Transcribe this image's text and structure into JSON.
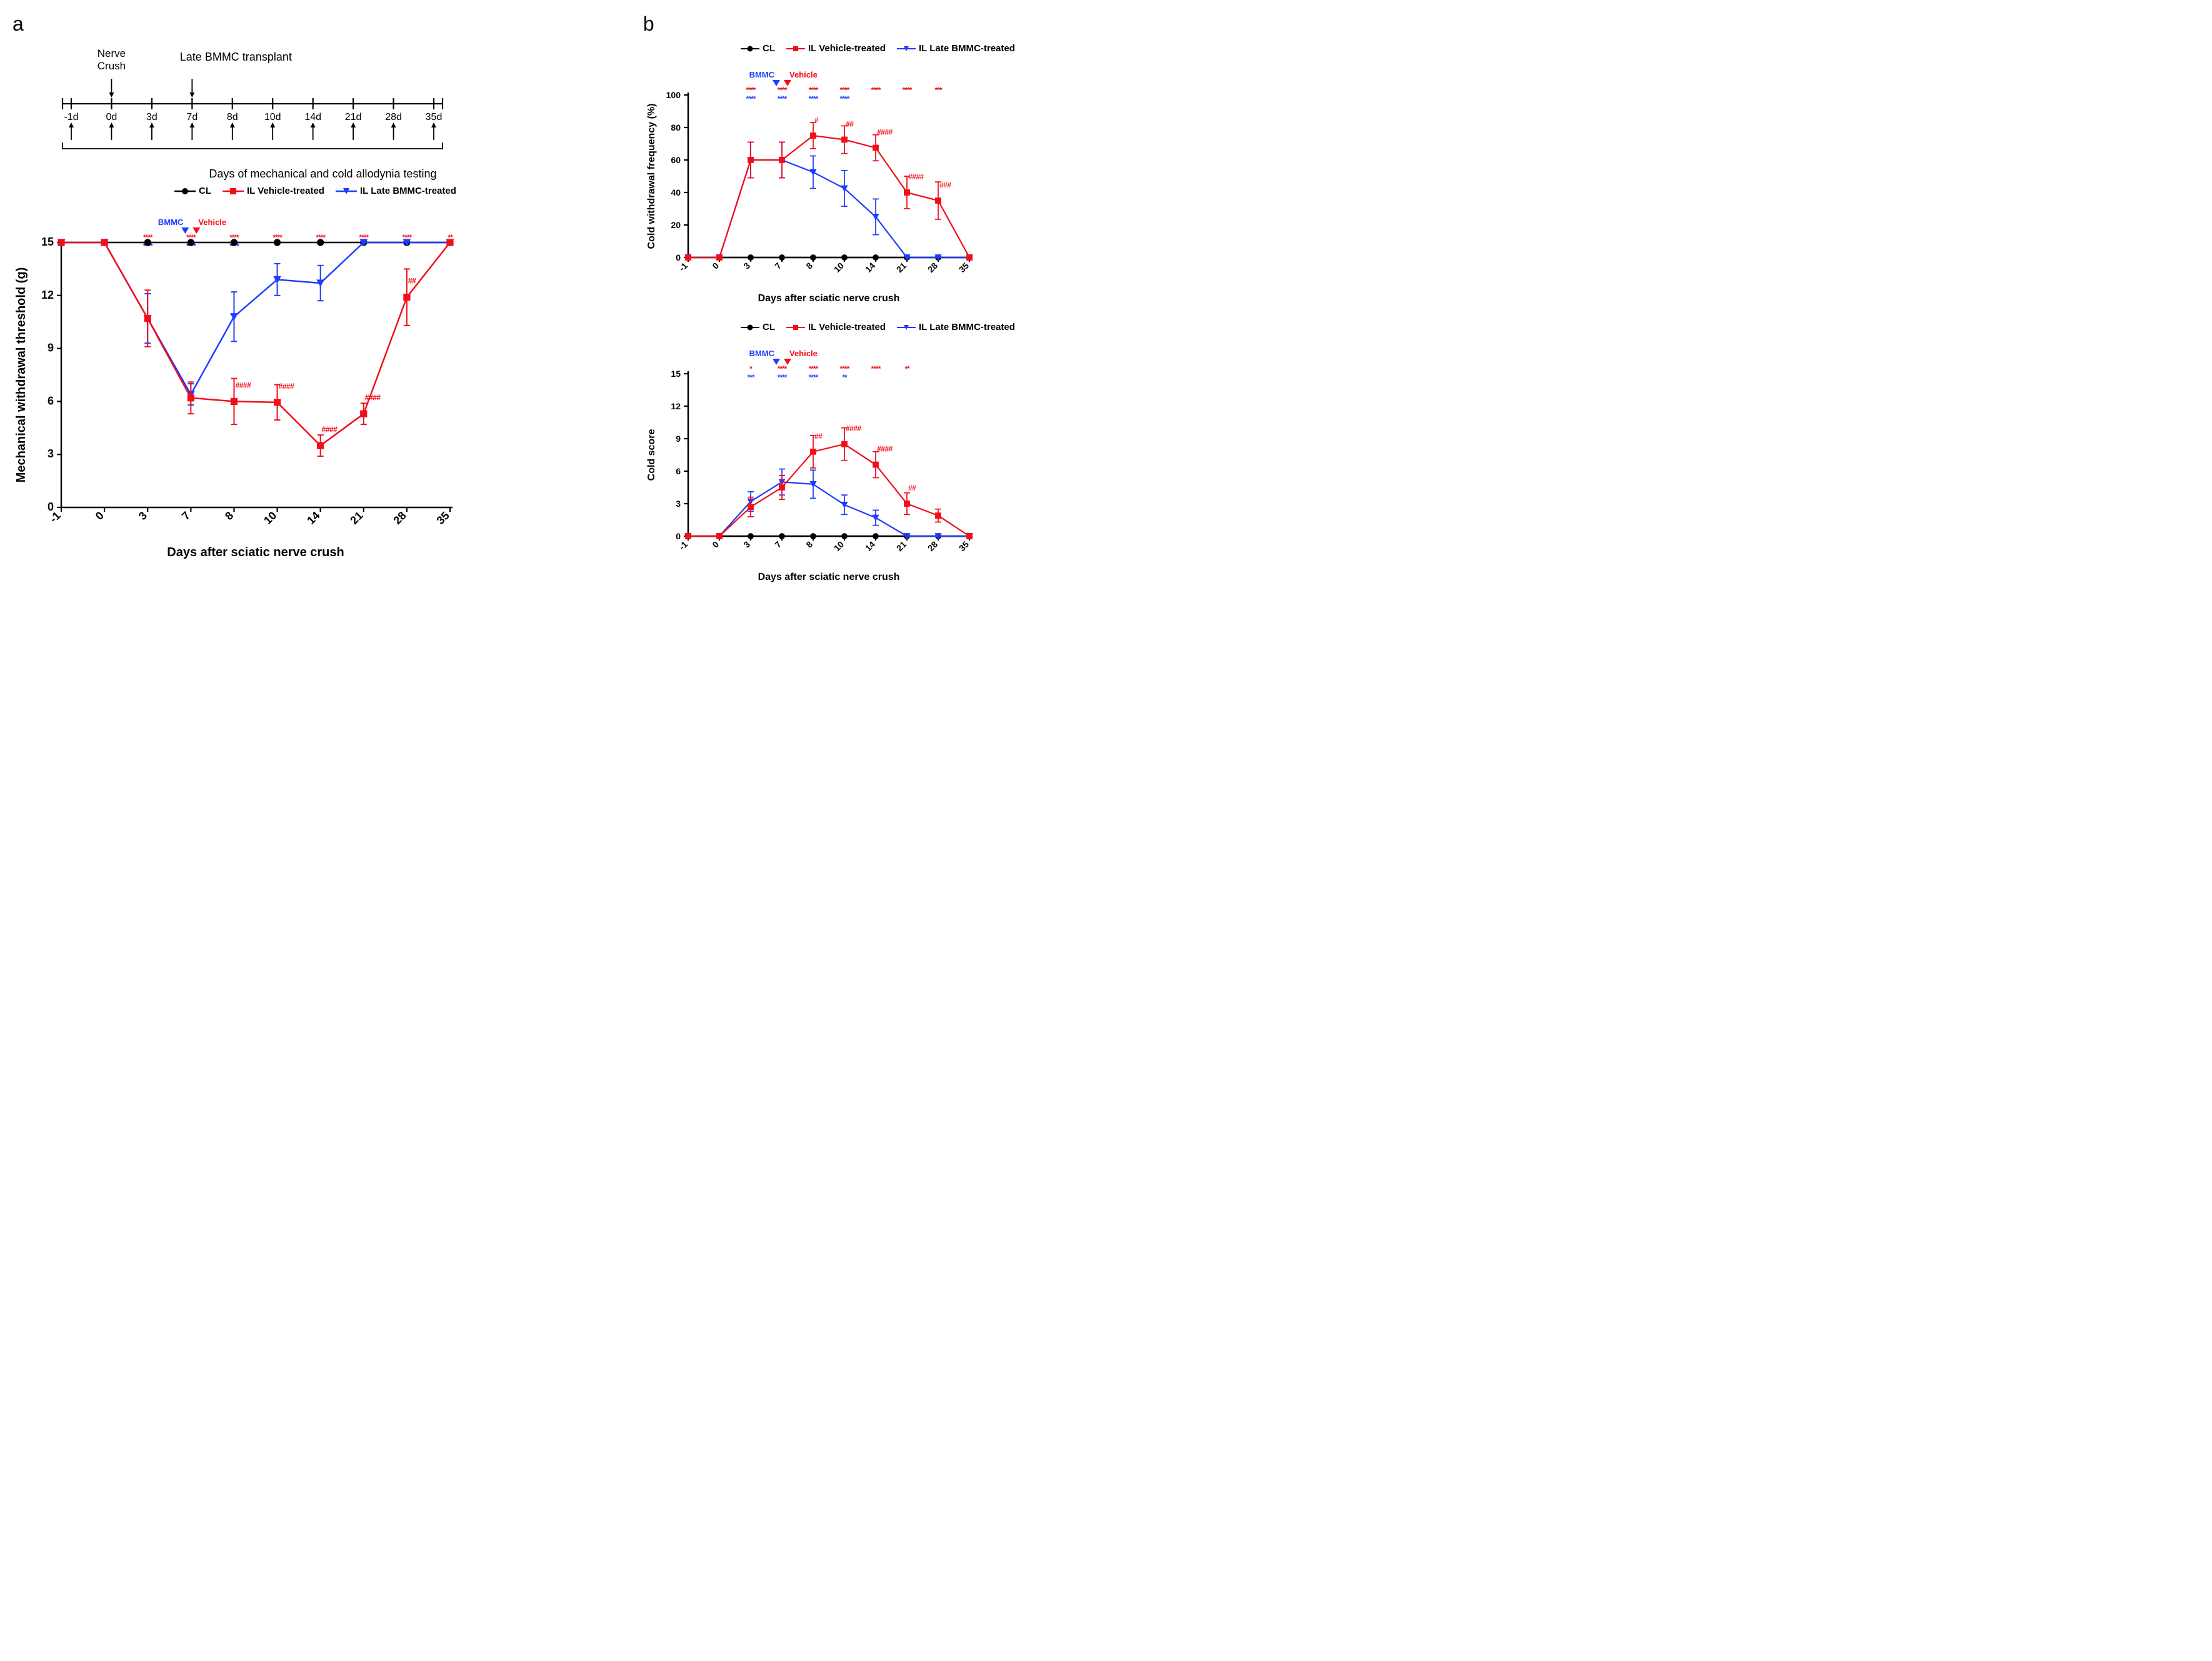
{
  "colors": {
    "cl": "#000000",
    "vehicle": "#f20d1a",
    "bmmc": "#1e3cff",
    "axis": "#000000",
    "bg": "#ffffff"
  },
  "legend": {
    "cl": "CL",
    "vehicle": "IL Vehicle-treated",
    "bmmc": "IL Late BMMC-treated"
  },
  "panel_a_label": "a",
  "panel_b_label": "b",
  "timeline": {
    "top_label_1": "Nerve Crush",
    "top_label_2": "Late BMMC transplant",
    "ticks": [
      "-1d",
      "0d",
      "3d",
      "7d",
      "8d",
      "10d",
      "14d",
      "21d",
      "28d",
      "35d"
    ],
    "bottom_caption": "Days of mechanical and cold allodynia testing"
  },
  "injection_marker": {
    "bmmc": "BMMC",
    "vehicle": "Vehicle"
  },
  "chart_mech": {
    "ylabel": "Mechanical withdrawal threshold (g)",
    "xlabel": "Days after sciatic nerve crush",
    "x_categories": [
      "-1",
      "0",
      "3",
      "7",
      "8",
      "10",
      "14",
      "21",
      "28",
      "35"
    ],
    "ylim": [
      0,
      15
    ],
    "ytick_step": 3,
    "cl": [
      15,
      15,
      15,
      15,
      15,
      15,
      15,
      15,
      15,
      15
    ],
    "vehicle": {
      "y": [
        15,
        15,
        10.7,
        6.2,
        6.0,
        5.95,
        3.5,
        5.3,
        11.9,
        15
      ],
      "err": [
        0,
        0,
        1.6,
        0.9,
        1.3,
        1.0,
        0.6,
        0.6,
        1.6,
        0
      ]
    },
    "bmmc": {
      "y": [
        15,
        15,
        10.7,
        6.4,
        10.8,
        12.9,
        12.7,
        15,
        15,
        15
      ],
      "err": [
        0,
        0,
        1.4,
        0.6,
        1.4,
        0.9,
        1.0,
        0,
        0,
        0
      ]
    },
    "sig_vehicle": [
      "",
      "",
      "****",
      "****",
      "****",
      "****",
      "****",
      "****",
      "****",
      "**"
    ],
    "sig_bmmc": [
      "",
      "",
      "****",
      "****",
      "****",
      "",
      "",
      "",
      "",
      ""
    ],
    "sig_hash": [
      "",
      "",
      "",
      "",
      "####",
      "####",
      "####",
      "####",
      "##",
      ""
    ],
    "axis_fontsize": 20,
    "tick_fontsize": 18,
    "label_fontsize": 22,
    "marker_size": 8,
    "line_width": 2.5
  },
  "chart_cold_freq": {
    "ylabel": "Cold withdrawal frequency (%)",
    "xlabel": "Days after sciatic nerve crush",
    "x_categories": [
      "-1",
      "0",
      "3",
      "7",
      "8",
      "10",
      "14",
      "21",
      "28",
      "35"
    ],
    "ylim": [
      0,
      100
    ],
    "ytick_step": 20,
    "cl": [
      0,
      0,
      0,
      0,
      0,
      0,
      0,
      0,
      0,
      0
    ],
    "vehicle": {
      "y": [
        0,
        0,
        60,
        60,
        75,
        72.5,
        67.5,
        40,
        35,
        0
      ],
      "err": [
        0,
        0,
        11,
        11,
        8,
        8.5,
        8,
        10,
        11.5,
        0
      ]
    },
    "bmmc": {
      "y": [
        0,
        0,
        60,
        60,
        52.5,
        42.5,
        25,
        0,
        0,
        0
      ],
      "err": [
        0,
        0,
        11,
        11,
        10,
        11,
        11,
        0,
        0,
        0
      ]
    },
    "sig_vehicle": [
      "",
      "",
      "****",
      "****",
      "****",
      "****",
      "****",
      "****",
      "***",
      ""
    ],
    "sig_bmmc": [
      "",
      "",
      "****",
      "****",
      "****",
      "****",
      "",
      "",
      "",
      ""
    ],
    "sig_hash": [
      "",
      "",
      "",
      "",
      "#",
      "##",
      "####",
      "####",
      "###",
      ""
    ],
    "axis_fontsize": 16,
    "tick_fontsize": 14,
    "label_fontsize": 18,
    "marker_size": 7,
    "line_width": 2.2
  },
  "chart_cold_score": {
    "ylabel": "Cold score",
    "xlabel": "Days after sciatic nerve crush",
    "x_categories": [
      "-1",
      "0",
      "3",
      "7",
      "8",
      "10",
      "14",
      "21",
      "28",
      "35"
    ],
    "ylim": [
      0,
      15
    ],
    "ytick_step": 3,
    "cl": [
      0,
      0,
      0,
      0,
      0,
      0,
      0,
      0,
      0,
      0
    ],
    "vehicle": {
      "y": [
        0,
        0,
        2.7,
        4.5,
        7.8,
        8.5,
        6.6,
        3.0,
        1.9,
        0
      ],
      "err": [
        0,
        0,
        0.9,
        1.1,
        1.5,
        1.5,
        1.2,
        1.0,
        0.6,
        0
      ]
    },
    "bmmc": {
      "y": [
        0,
        0,
        3.2,
        5.0,
        4.8,
        2.9,
        1.7,
        0,
        0,
        0
      ],
      "err": [
        0,
        0,
        0.9,
        1.2,
        1.3,
        0.9,
        0.7,
        0,
        0,
        0
      ]
    },
    "sig_vehicle": [
      "",
      "",
      "*",
      "****",
      "****",
      "****",
      "****",
      "**",
      "",
      ""
    ],
    "sig_bmmc": [
      "",
      "",
      "***",
      "****",
      "****",
      "**",
      "",
      "",
      "",
      ""
    ],
    "sig_hash": [
      "",
      "",
      "",
      "",
      "##",
      "####",
      "####",
      "##",
      "",
      ""
    ],
    "axis_fontsize": 16,
    "tick_fontsize": 14,
    "label_fontsize": 18,
    "marker_size": 7,
    "line_width": 2.2
  }
}
